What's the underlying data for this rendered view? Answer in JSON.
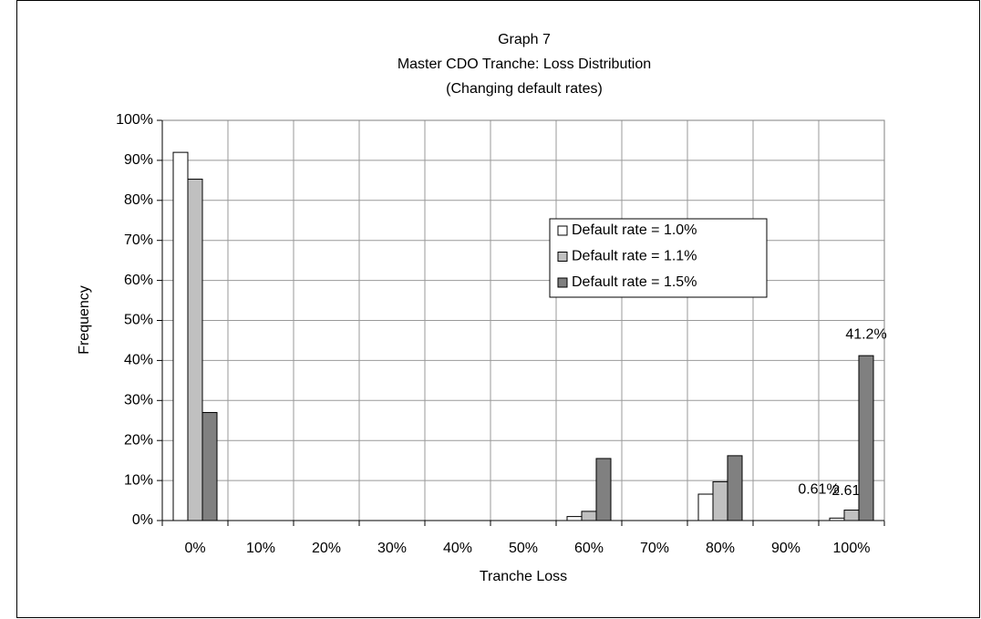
{
  "chart_data": {
    "type": "bar",
    "title": [
      "Graph 7",
      "Master CDO Tranche: Loss Distribution",
      "(Changing default rates)"
    ],
    "x_label": "Tranche Loss",
    "y_label": "Frequency",
    "categories": [
      "0%",
      "10%",
      "20%",
      "30%",
      "40%",
      "50%",
      "60%",
      "70%",
      "80%",
      "90%",
      "100%"
    ],
    "series": [
      {
        "name": "Default rate = 1.0%",
        "color": "#ffffff",
        "values": [
          92,
          0,
          0,
          0,
          0,
          0,
          1,
          0,
          6.6,
          0,
          0.61
        ],
        "value_labels": [
          null,
          null,
          null,
          null,
          null,
          null,
          null,
          null,
          null,
          null,
          "0.61%"
        ]
      },
      {
        "name": "Default rate = 1.1%",
        "color": "#c0c0c0",
        "values": [
          85.3,
          0,
          0,
          0,
          0,
          0,
          2.3,
          0,
          9.7,
          0,
          2.61
        ],
        "value_labels": [
          null,
          null,
          null,
          null,
          null,
          null,
          null,
          null,
          null,
          null,
          "2.61%"
        ]
      },
      {
        "name": "Default rate = 1.5%",
        "color": "#808080",
        "values": [
          27,
          0,
          0,
          0,
          0,
          0,
          15.5,
          0,
          16.2,
          0,
          41.2
        ],
        "value_labels": [
          null,
          null,
          null,
          null,
          null,
          null,
          null,
          null,
          null,
          null,
          "41.2%"
        ]
      }
    ],
    "ylim": [
      0,
      100
    ],
    "yticks": [
      {
        "value": 0,
        "label": "0%"
      },
      {
        "value": 10,
        "label": "10%"
      },
      {
        "value": 20,
        "label": "20%"
      },
      {
        "value": 30,
        "label": "30%"
      },
      {
        "value": 40,
        "label": "40%"
      },
      {
        "value": 50,
        "label": "50%"
      },
      {
        "value": 60,
        "label": "60%"
      },
      {
        "value": 70,
        "label": "70%"
      },
      {
        "value": 80,
        "label": "80%"
      },
      {
        "value": 90,
        "label": "90%"
      },
      {
        "value": 100,
        "label": "100%"
      }
    ],
    "grid": true,
    "legend": "upper right"
  }
}
